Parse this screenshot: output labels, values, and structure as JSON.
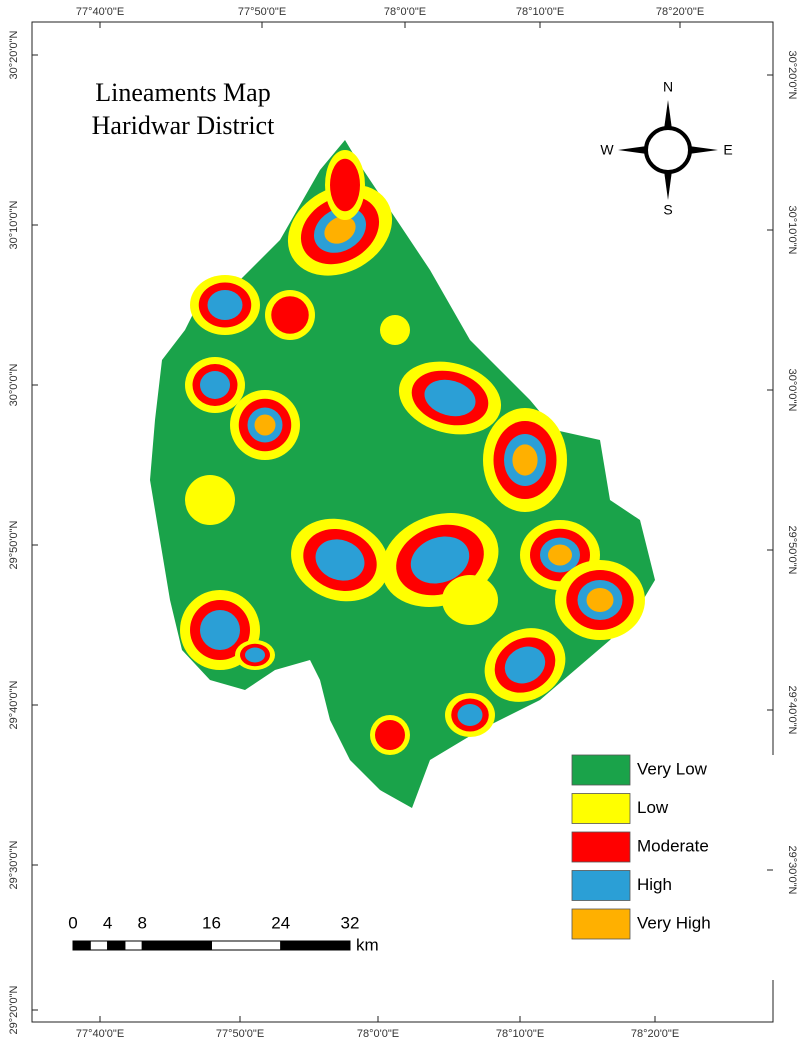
{
  "title": [
    "Lineaments Map",
    "Haridwar District"
  ],
  "compass": {
    "north": "N",
    "south": "S",
    "east": "E",
    "west": "W"
  },
  "graticule": {
    "top": [
      "77°40'0\"E",
      "77°50'0\"E",
      "78°0'0\"E",
      "78°10'0\"E",
      "78°20'0\"E"
    ],
    "bottom": [
      "77°40'0\"E",
      "77°50'0\"E",
      "78°0'0\"E",
      "78°10'0\"E",
      "78°20'0\"E"
    ],
    "left": [
      "30°20'0\"N",
      "30°10'0\"N",
      "30°0'0\"N",
      "29°50'0\"N",
      "29°40'0\"N",
      "29°30'0\"N",
      "29°20'0\"N"
    ],
    "right": [
      "30°20'0\"N",
      "30°10'0\"N",
      "30°0'0\"N",
      "29°50'0\"N",
      "29°40'0\"N",
      "29°30'0\"N"
    ]
  },
  "legend": [
    {
      "label": "Very Low",
      "color": "#1aa34a"
    },
    {
      "label": "Low",
      "color": "#ffff00"
    },
    {
      "label": "Moderate",
      "color": "#ff0000"
    },
    {
      "label": "High",
      "color": "#2b9fd6"
    },
    {
      "label": "Very High",
      "color": "#ffb000"
    }
  ],
  "scale_bar": {
    "ticks": [
      0,
      4,
      8,
      16,
      24,
      32
    ],
    "unit": "km"
  }
}
